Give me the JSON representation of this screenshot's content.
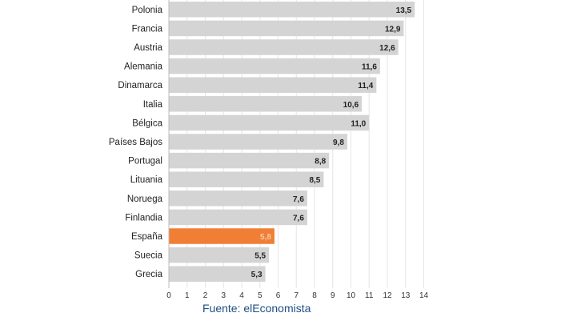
{
  "chart_data": {
    "type": "bar",
    "orientation": "horizontal",
    "categories": [
      "Polonia",
      "Francia",
      "Austria",
      "Alemania",
      "Dinamarca",
      "Italia",
      "Bélgica",
      "Países Bajos",
      "Portugal",
      "Lituania",
      "Noruega",
      "Finlandia",
      "España",
      "Suecia",
      "Grecia"
    ],
    "values": [
      13.5,
      12.9,
      12.6,
      11.6,
      11.4,
      10.6,
      11.0,
      9.8,
      8.8,
      8.5,
      7.6,
      7.6,
      5.8,
      5.5,
      5.3
    ],
    "value_labels": [
      "13,5",
      "12,9",
      "12,6",
      "11,6",
      "11,4",
      "10,6",
      "11,0",
      "9,8",
      "8,8",
      "8,5",
      "7,6",
      "7,6",
      "5,8",
      "5,5",
      "5,3"
    ],
    "highlight": "España",
    "xlim": [
      0,
      14
    ],
    "xticks": [
      "0",
      "1",
      "2",
      "3",
      "4",
      "5",
      "6",
      "7",
      "8",
      "9",
      "10",
      "11",
      "12",
      "13",
      "14"
    ],
    "grid": true,
    "colors": {
      "bar": "#d3d4d3",
      "highlight": "#f07f35",
      "grid": "#e6e6e6"
    }
  },
  "source": "Fuente: elEconomista"
}
